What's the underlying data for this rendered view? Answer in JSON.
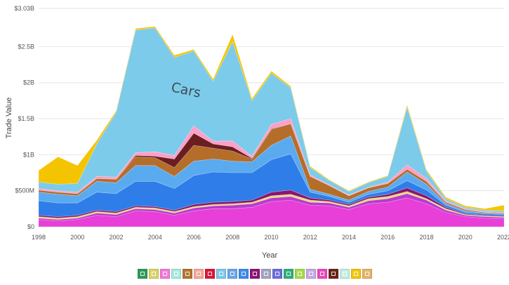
{
  "chart_data": {
    "type": "area",
    "stacked": true,
    "xlabel": "Year",
    "ylabel": "Trade Value",
    "ylim": [
      0,
      3.03
    ],
    "y_ticks": [
      {
        "value": 0,
        "label": "$0"
      },
      {
        "value": 0.5,
        "label": "$500M"
      },
      {
        "value": 1,
        "label": "$1B"
      },
      {
        "value": 1.5,
        "label": "$1.5B"
      },
      {
        "value": 2,
        "label": "$2B"
      },
      {
        "value": 2.5,
        "label": "$2.5B"
      },
      {
        "value": 3.03,
        "label": "$3.03B"
      }
    ],
    "x_ticks": [
      "1998",
      "2000",
      "2002",
      "2004",
      "2006",
      "2008",
      "2010",
      "2012",
      "2014",
      "2016",
      "2018",
      "2020",
      "2022"
    ],
    "x": [
      1998,
      1999,
      2000,
      2001,
      2002,
      2003,
      2004,
      2005,
      2006,
      2007,
      2008,
      2009,
      2010,
      2011,
      2012,
      2013,
      2014,
      2015,
      2016,
      2017,
      2018,
      2019,
      2020,
      2021,
      2022
    ],
    "grid": true,
    "annotation": {
      "text": "Cars",
      "x": 2004.8,
      "y": 1.88
    },
    "series": [
      {
        "color": "#e83fd8",
        "values": [
          0.1,
          0.08,
          0.1,
          0.16,
          0.14,
          0.22,
          0.21,
          0.16,
          0.22,
          0.25,
          0.25,
          0.27,
          0.35,
          0.37,
          0.3,
          0.29,
          0.24,
          0.32,
          0.34,
          0.4,
          0.32,
          0.2,
          0.14,
          0.12,
          0.11
        ]
      },
      {
        "color": "#b83bd0",
        "values": [
          0.02,
          0.02,
          0.02,
          0.03,
          0.03,
          0.03,
          0.03,
          0.03,
          0.04,
          0.04,
          0.05,
          0.05,
          0.05,
          0.05,
          0.04,
          0.04,
          0.03,
          0.04,
          0.05,
          0.06,
          0.05,
          0.03,
          0.02,
          0.02,
          0.02
        ]
      },
      {
        "color": "#ecd87a",
        "values": [
          0.02,
          0.02,
          0.02,
          0.02,
          0.02,
          0.02,
          0.02,
          0.02,
          0.02,
          0.02,
          0.02,
          0.02,
          0.03,
          0.03,
          0.03,
          0.02,
          0.02,
          0.03,
          0.03,
          0.03,
          0.02,
          0.02,
          0.01,
          0.01,
          0.01
        ]
      },
      {
        "color": "#8a1570",
        "values": [
          0.02,
          0.02,
          0.02,
          0.02,
          0.02,
          0.02,
          0.02,
          0.02,
          0.03,
          0.03,
          0.03,
          0.03,
          0.05,
          0.06,
          0.03,
          0.02,
          0.02,
          0.02,
          0.03,
          0.05,
          0.04,
          0.02,
          0.01,
          0.01,
          0.01
        ]
      },
      {
        "color": "#2f7de8",
        "values": [
          0.2,
          0.19,
          0.17,
          0.25,
          0.25,
          0.34,
          0.35,
          0.3,
          0.4,
          0.42,
          0.4,
          0.38,
          0.45,
          0.5,
          0.08,
          0.05,
          0.03,
          0.04,
          0.05,
          0.1,
          0.08,
          0.03,
          0.02,
          0.02,
          0.02
        ]
      },
      {
        "color": "#5aaaf0",
        "values": [
          0.12,
          0.12,
          0.1,
          0.15,
          0.15,
          0.22,
          0.22,
          0.17,
          0.2,
          0.18,
          0.16,
          0.15,
          0.2,
          0.25,
          0.04,
          0.03,
          0.03,
          0.04,
          0.05,
          0.12,
          0.08,
          0.02,
          0.02,
          0.01,
          0.01
        ]
      },
      {
        "color": "#b56d2a",
        "values": [
          0.03,
          0.03,
          0.03,
          0.04,
          0.05,
          0.12,
          0.11,
          0.12,
          0.22,
          0.15,
          0.14,
          0.04,
          0.22,
          0.17,
          0.18,
          0.12,
          0.06,
          0.05,
          0.05,
          0.04,
          0.04,
          0.02,
          0.02,
          0.01,
          0.01
        ]
      },
      {
        "color": "#6b1e20",
        "values": [
          0.0,
          0.0,
          0.0,
          0.0,
          0.0,
          0.02,
          0.02,
          0.12,
          0.17,
          0.06,
          0.06,
          0.01,
          0.01,
          0.0,
          0.0,
          0.0,
          0.0,
          0.0,
          0.0,
          0.0,
          0.0,
          0.0,
          0.0,
          0.0,
          0.0
        ]
      },
      {
        "color": "#ff9ec8",
        "values": [
          0.02,
          0.02,
          0.02,
          0.03,
          0.03,
          0.04,
          0.06,
          0.05,
          0.1,
          0.04,
          0.08,
          0.03,
          0.06,
          0.07,
          0.02,
          0.01,
          0.01,
          0.01,
          0.02,
          0.06,
          0.04,
          0.02,
          0.01,
          0.01,
          0.01
        ]
      },
      {
        "color": "#7ccbea",
        "values": [
          0.09,
          0.09,
          0.12,
          0.45,
          0.9,
          1.7,
          1.72,
          1.36,
          1.04,
          0.83,
          1.38,
          0.77,
          0.71,
          0.43,
          0.1,
          0.06,
          0.05,
          0.06,
          0.08,
          0.8,
          0.1,
          0.03,
          0.02,
          0.02,
          0.02
        ]
      },
      {
        "color": "#f5c400",
        "values": [
          0.16,
          0.38,
          0.25,
          0.05,
          0.02,
          0.02,
          0.02,
          0.03,
          0.02,
          0.03,
          0.1,
          0.03,
          0.03,
          0.02,
          0.02,
          0.01,
          0.01,
          0.01,
          0.01,
          0.03,
          0.02,
          0.02,
          0.02,
          0.02,
          0.08
        ]
      }
    ],
    "legend": {
      "placement": "bottom",
      "swatches": [
        "#2e9a58",
        "#d9d26a",
        "#f27ad8",
        "#a6eadc",
        "#b2742f",
        "#f4a89a",
        "#d8173a",
        "#7cc8ea",
        "#6aa6e6",
        "#3f8ae8",
        "#8a157a",
        "#a4a2c4",
        "#6b6fd8",
        "#2fb07c",
        "#a9d84e",
        "#c6a8e6",
        "#e84ab8",
        "#6b2418",
        "#c3ece4",
        "#f2c60a",
        "#e3b46a"
      ]
    }
  }
}
